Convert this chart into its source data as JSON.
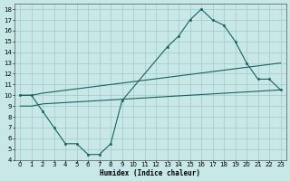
{
  "bg_color": "#c8e8e8",
  "grid_color": "#a8cccc",
  "line_color": "#1a6060",
  "xlabel": "Humidex (Indice chaleur)",
  "xlim": [
    -0.5,
    23.5
  ],
  "ylim": [
    4,
    18.5
  ],
  "xticks": [
    0,
    1,
    2,
    3,
    4,
    5,
    6,
    7,
    8,
    9,
    10,
    11,
    12,
    13,
    14,
    15,
    16,
    17,
    18,
    19,
    20,
    21,
    22,
    23
  ],
  "yticks": [
    4,
    5,
    6,
    7,
    8,
    9,
    10,
    11,
    12,
    13,
    14,
    15,
    16,
    17,
    18
  ],
  "curve1_x": [
    0,
    1,
    2,
    3,
    4,
    5,
    6,
    7,
    8,
    9,
    13,
    14,
    15,
    16,
    17,
    18,
    19,
    20,
    21,
    22,
    23
  ],
  "curve1_y": [
    10,
    10,
    8.5,
    7,
    5.5,
    5.5,
    4.5,
    4.5,
    5.5,
    9.5,
    14.5,
    15.5,
    17.0,
    18.0,
    17.0,
    16.5,
    15.0,
    13.0,
    11.5,
    11.5,
    10.5
  ],
  "curve2_x": [
    0,
    1,
    2,
    23
  ],
  "curve2_y": [
    10.0,
    10.0,
    10.2,
    13.0
  ],
  "curve3_x": [
    0,
    1,
    2,
    23
  ],
  "curve3_y": [
    9.0,
    9.0,
    9.2,
    10.5
  ],
  "marker_x1": [
    0,
    1,
    2,
    3,
    4,
    5,
    6,
    7,
    8,
    9,
    13,
    14,
    15,
    16,
    17,
    18,
    19,
    20,
    21,
    22,
    23
  ],
  "marker_y1": [
    10,
    10,
    8.5,
    7,
    5.5,
    5.5,
    4.5,
    4.5,
    5.5,
    9.5,
    14.5,
    15.5,
    17.0,
    18.0,
    17.0,
    16.5,
    15.0,
    13.0,
    11.5,
    11.5,
    10.5
  ]
}
